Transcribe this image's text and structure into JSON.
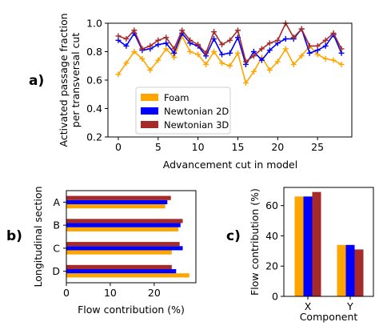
{
  "chart_data": [
    {
      "id": "a",
      "panel_label": "a)",
      "type": "line",
      "xlabel": "Advancement cut in model",
      "ylabel_lines": [
        "Activated passage fraction",
        "per transversal cut"
      ],
      "xlim": [
        -1.3,
        29.3
      ],
      "ylim": [
        0.2,
        1.0
      ],
      "xticks": [
        0,
        5,
        10,
        15,
        20,
        25
      ],
      "yticks": [
        0.2,
        0.4,
        0.6,
        0.8,
        1.0
      ],
      "ytick_labels": [
        "0.2",
        "0.4",
        "0.6",
        "0.8",
        "1.0"
      ],
      "legend_position": "lower-left-center",
      "marker": "plus",
      "x": [
        0,
        1,
        2,
        3,
        4,
        5,
        6,
        7,
        8,
        9,
        10,
        11,
        12,
        13,
        14,
        15,
        16,
        17,
        18,
        19,
        20,
        21,
        22,
        23,
        24,
        25,
        26,
        27,
        28
      ],
      "series": [
        {
          "name": "Foam",
          "color": "#FFA500",
          "values": [
            0.64,
            0.72,
            0.8,
            0.75,
            0.67,
            0.74,
            0.82,
            0.76,
            0.91,
            0.8,
            0.78,
            0.71,
            0.8,
            0.72,
            0.7,
            0.79,
            0.58,
            0.66,
            0.76,
            0.67,
            0.73,
            0.82,
            0.71,
            0.77,
            0.84,
            0.78,
            0.75,
            0.74,
            0.71
          ]
        },
        {
          "name": "Newtonian 2D",
          "color": "#0000FF",
          "values": [
            0.88,
            0.84,
            0.93,
            0.81,
            0.82,
            0.85,
            0.86,
            0.79,
            0.93,
            0.86,
            0.84,
            0.77,
            0.89,
            0.78,
            0.79,
            0.9,
            0.71,
            0.8,
            0.74,
            0.81,
            0.86,
            0.89,
            0.89,
            0.96,
            0.79,
            0.81,
            0.84,
            0.92,
            0.79
          ]
        },
        {
          "name": "Newtonian 3D",
          "color": "#A52A2A",
          "values": [
            0.91,
            0.89,
            0.95,
            0.82,
            0.84,
            0.88,
            0.9,
            0.82,
            0.95,
            0.88,
            0.85,
            0.79,
            0.94,
            0.85,
            0.88,
            0.95,
            0.73,
            0.77,
            0.82,
            0.86,
            0.88,
            1.0,
            0.9,
            0.96,
            0.84,
            0.84,
            0.88,
            0.93,
            0.82
          ]
        }
      ]
    },
    {
      "id": "b",
      "panel_label": "b)",
      "type": "bar-horizontal",
      "xlabel": "Flow contribution (%)",
      "ylabel": "Longitudinal section",
      "xlim": [
        0,
        29.5
      ],
      "xticks": [
        0,
        10,
        20
      ],
      "categories": [
        "A",
        "B",
        "C",
        "D"
      ],
      "series": [
        {
          "name": "Foam",
          "color": "#FFA500",
          "values": [
            22.5,
            25.5,
            24.0,
            28.0
          ]
        },
        {
          "name": "Newtonian 2D",
          "color": "#0000FF",
          "values": [
            23.0,
            26.0,
            26.5,
            25.0
          ]
        },
        {
          "name": "Newtonian 3D",
          "color": "#A52A2A",
          "values": [
            23.8,
            26.5,
            25.8,
            24.0
          ]
        }
      ]
    },
    {
      "id": "c",
      "panel_label": "c)",
      "type": "bar",
      "xlabel": "Component",
      "ylabel": "Flow contribution (%)",
      "ylim": [
        0,
        72
      ],
      "yticks": [
        0,
        20,
        40,
        60
      ],
      "categories": [
        "X",
        "Y"
      ],
      "series": [
        {
          "name": "Foam",
          "color": "#FFA500",
          "values": [
            66,
            34
          ]
        },
        {
          "name": "Newtonian 2D",
          "color": "#0000FF",
          "values": [
            66,
            34
          ]
        },
        {
          "name": "Newtonian 3D",
          "color": "#A52A2A",
          "values": [
            69,
            31
          ]
        }
      ]
    }
  ]
}
